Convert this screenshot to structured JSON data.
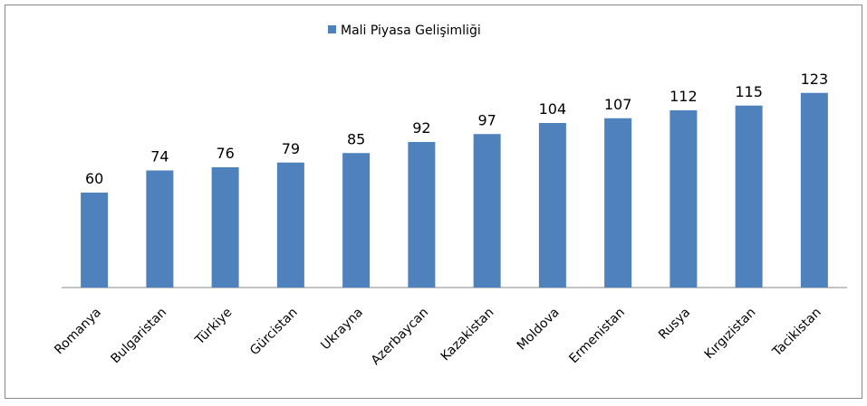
{
  "chart_data": {
    "type": "bar",
    "categories": [
      "Romanya",
      "Bulgaristan",
      "Türkiye",
      "Gürcistan",
      "Ukrayna",
      "Azerbaycan",
      "Kazakistan",
      "Moldova",
      "Ermenistan",
      "Rusya",
      "Kırgızistan",
      "Tacikistan"
    ],
    "series": [
      {
        "name": "Mali Piyasa Gelişimliği",
        "color": "#4f81bd",
        "values": [
          60,
          74,
          76,
          79,
          85,
          92,
          97,
          104,
          107,
          112,
          115,
          123
        ]
      }
    ],
    "ylim": [
      0,
      140
    ],
    "legend": "top",
    "data_labels": true
  }
}
